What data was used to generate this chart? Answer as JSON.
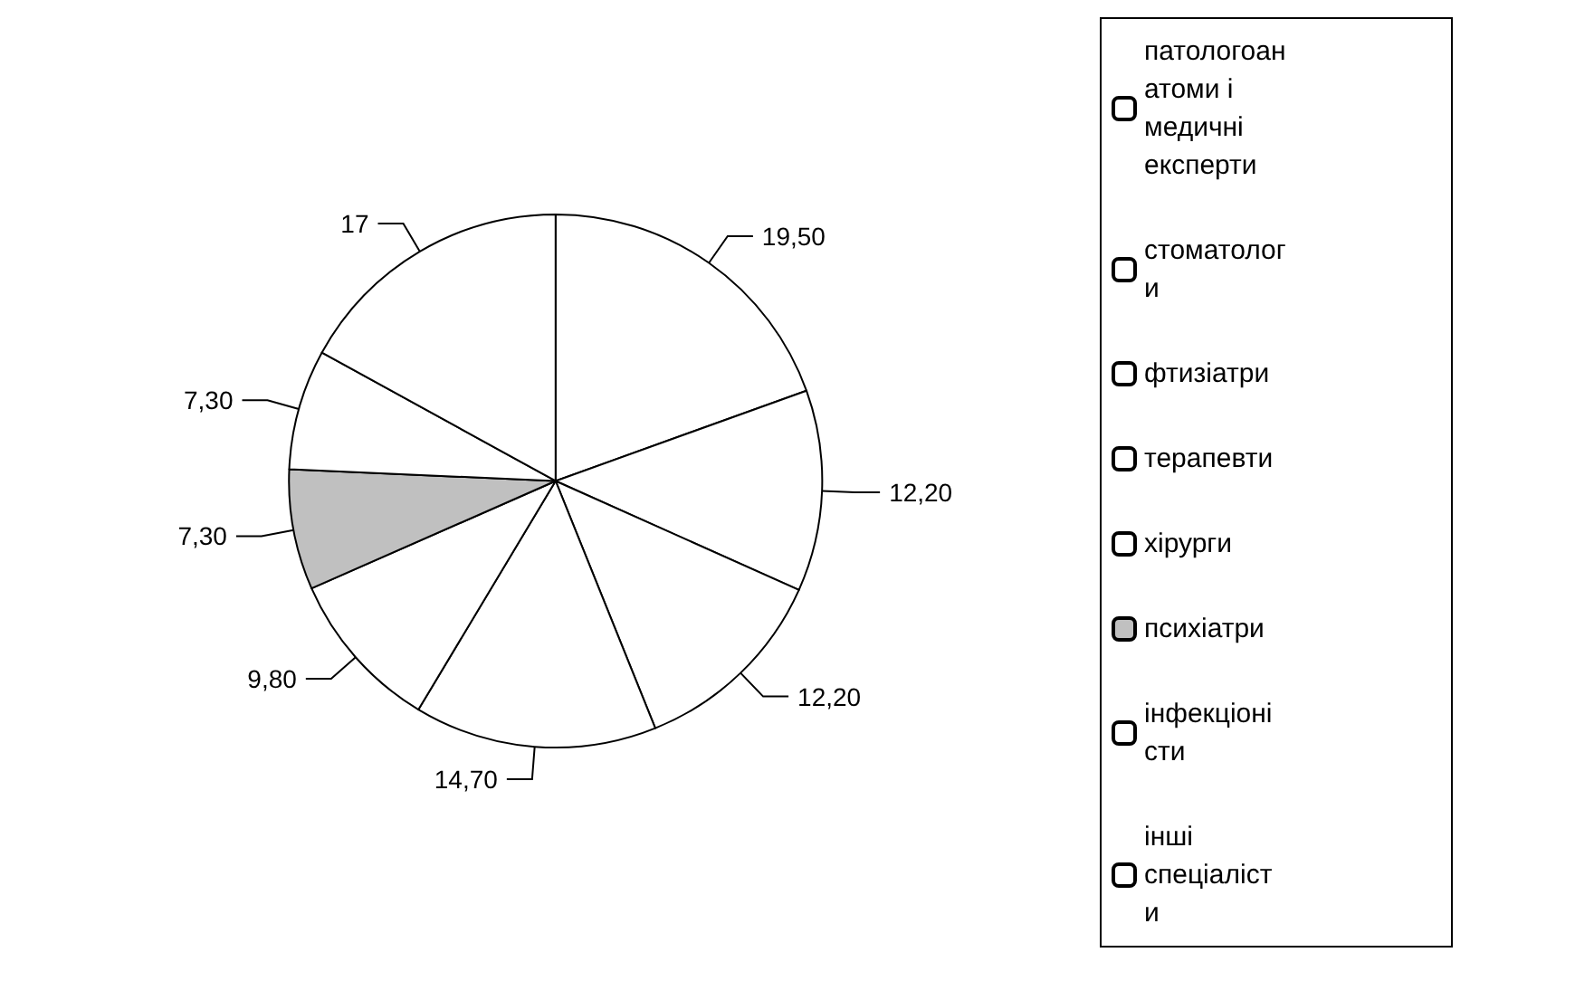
{
  "chart_data": {
    "type": "pie",
    "categories": [
      "патологоанатоми і медичні експерти",
      "стоматологи",
      "фтизіатри",
      "терапевти",
      "хірурги",
      "психіатри",
      "інфекціоністи",
      "інші спеціалісти"
    ],
    "values": [
      19.5,
      12.2,
      12.2,
      14.7,
      9.8,
      7.3,
      7.3,
      17
    ],
    "value_labels": [
      "19,50",
      "12,20",
      "12,20",
      "14,70",
      "9,80",
      "7,30",
      "7,30",
      "17"
    ],
    "colors": [
      "#ffffff",
      "#ffffff",
      "#ffffff",
      "#ffffff",
      "#ffffff",
      "#c0c0c0",
      "#ffffff",
      "#ffffff"
    ],
    "legend": "right"
  }
}
